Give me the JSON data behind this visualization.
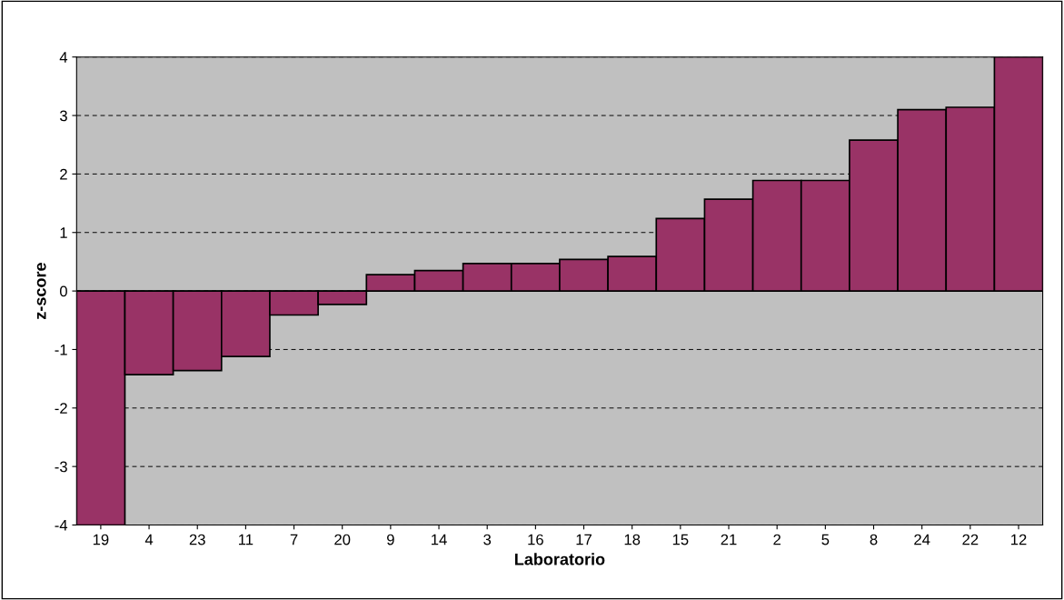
{
  "chart_data": {
    "type": "bar",
    "xlabel": "Laboratorio",
    "ylabel": "z-score",
    "categories": [
      "19",
      "4",
      "23",
      "11",
      "7",
      "20",
      "9",
      "14",
      "3",
      "16",
      "17",
      "18",
      "15",
      "21",
      "2",
      "5",
      "8",
      "24",
      "22",
      "12"
    ],
    "values": [
      -4,
      -1.43,
      -1.36,
      -1.12,
      -0.41,
      -0.23,
      0.28,
      0.35,
      0.47,
      0.47,
      0.54,
      0.59,
      1.24,
      1.57,
      1.89,
      1.89,
      2.58,
      3.1,
      3.14,
      4
    ],
    "color": "#993366",
    "ylim": [
      -4,
      4
    ],
    "yticks": [
      -4,
      -3,
      -2,
      -1,
      0,
      1,
      2,
      3,
      4
    ],
    "grid": "y",
    "legend": false,
    "ref_lines": [
      {
        "axis": "y",
        "value": 0,
        "color": "#000000",
        "line_style": "solid"
      }
    ]
  }
}
